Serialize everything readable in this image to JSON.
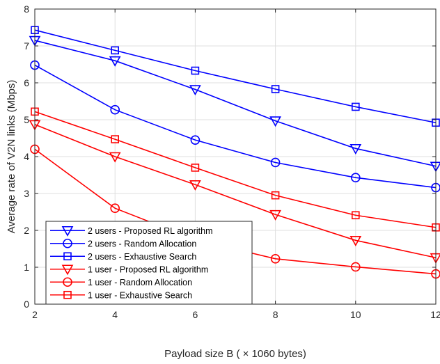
{
  "chart_data": {
    "type": "line",
    "title": "",
    "xlabel": "Payload size B ( × 1060 bytes)",
    "ylabel": "Average rate of V2N links (Mbps)",
    "xlim": [
      2,
      12
    ],
    "ylim": [
      0,
      8
    ],
    "xticks": [
      2,
      4,
      6,
      8,
      10,
      12
    ],
    "yticks": [
      0,
      1,
      2,
      3,
      4,
      5,
      6,
      7,
      8
    ],
    "grid": true,
    "legend_position": "bottom-left",
    "x": [
      2,
      4,
      6,
      8,
      10,
      12
    ],
    "series": [
      {
        "name": "2 users - Proposed RL algorithm",
        "color": "#0000ff",
        "marker": "triangle-down",
        "values": [
          7.15,
          6.6,
          5.82,
          4.97,
          4.22,
          3.74
        ]
      },
      {
        "name": "2 users - Random Allocation",
        "color": "#0000ff",
        "marker": "circle",
        "values": [
          6.48,
          5.27,
          4.45,
          3.84,
          3.43,
          3.16
        ]
      },
      {
        "name": "2 users - Exhaustive Search",
        "color": "#0000ff",
        "marker": "square",
        "values": [
          7.43,
          6.88,
          6.33,
          5.83,
          5.35,
          4.92
        ]
      },
      {
        "name": "1 user - Proposed RL algorithm",
        "color": "#ff0000",
        "marker": "triangle-down",
        "values": [
          4.87,
          4.0,
          3.24,
          2.43,
          1.73,
          1.26
        ]
      },
      {
        "name": "1 user - Random Allocation",
        "color": "#ff0000",
        "marker": "circle",
        "values": [
          4.2,
          2.6,
          1.75,
          1.23,
          1.01,
          0.82
        ]
      },
      {
        "name": "1 user - Exhaustive Search",
        "color": "#ff0000",
        "marker": "square",
        "values": [
          5.22,
          4.47,
          3.7,
          2.95,
          2.41,
          2.08
        ]
      }
    ]
  }
}
